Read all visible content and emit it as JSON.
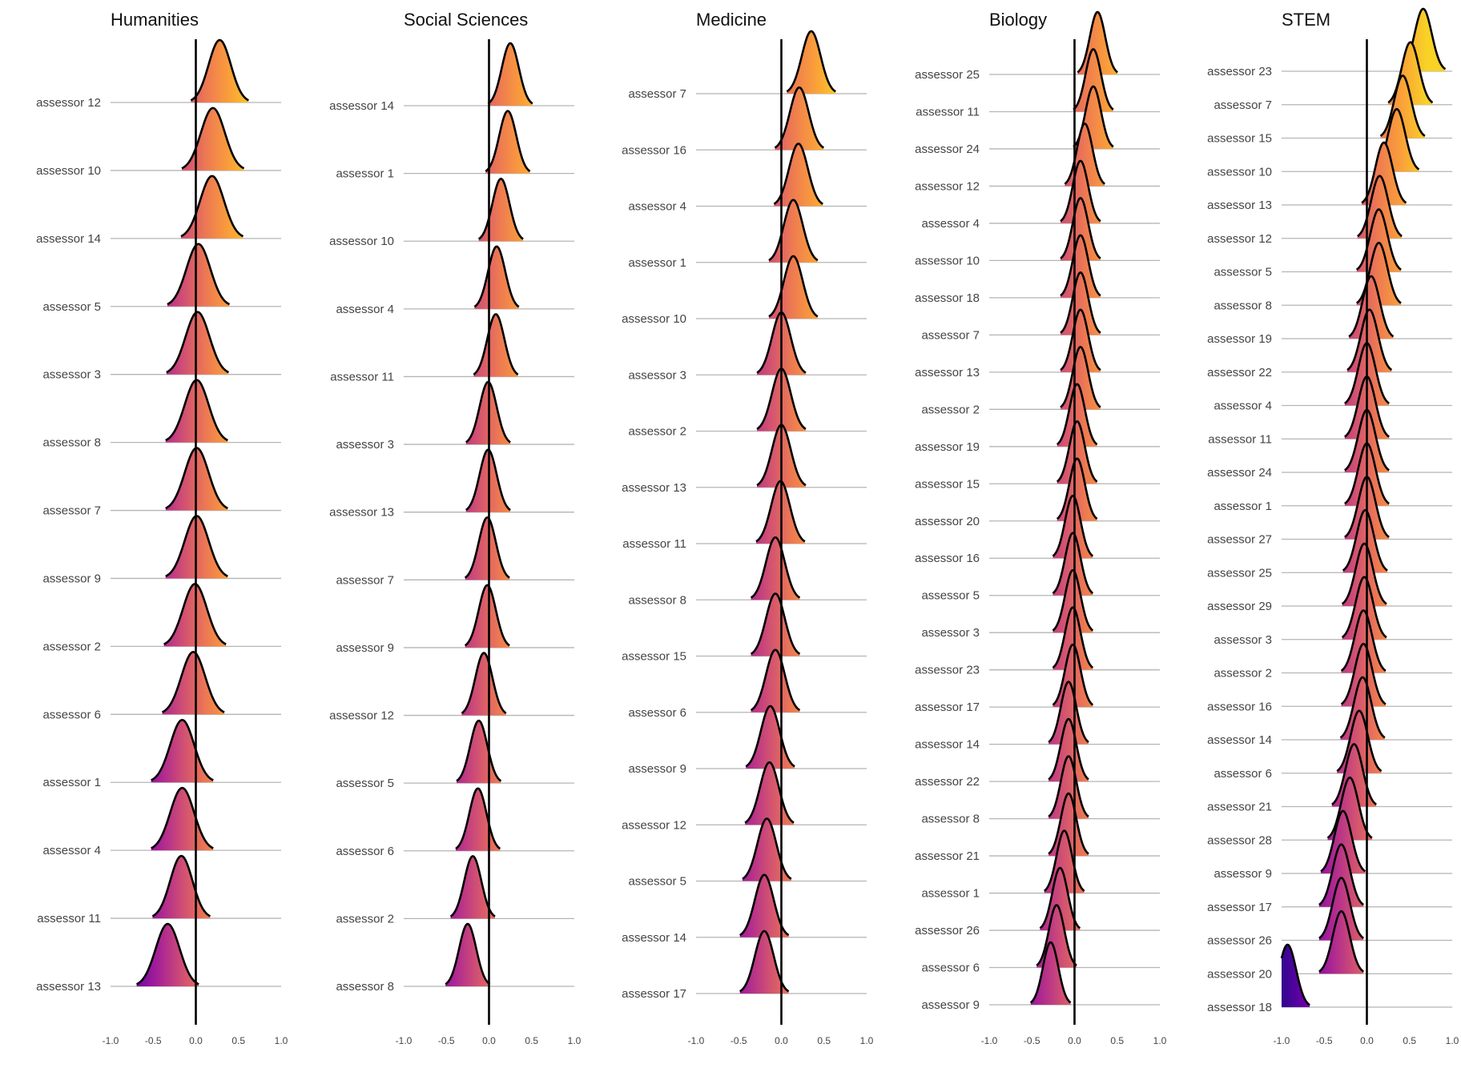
{
  "chart_data": {
    "type": "ridgeline",
    "xlim": [
      -1.0,
      1.0
    ],
    "x_ticks": [
      -1.0,
      -0.5,
      0.0,
      0.5,
      1.0
    ],
    "x_tick_labels": [
      "-1.0",
      "-0.5",
      "0.0",
      "0.5",
      "1.0"
    ],
    "reference_line_x": 0.0,
    "color_scale": {
      "low": -1.0,
      "high": 0.7,
      "stops": [
        "#30068f",
        "#6f00a8",
        "#a82296",
        "#d04f74",
        "#ee7b51",
        "#fba238",
        "#f8d225"
      ]
    },
    "panels": [
      {
        "title": "Humanities",
        "series": [
          {
            "name": "assessor 12",
            "mean": 0.28,
            "sd": 0.13
          },
          {
            "name": "assessor 10",
            "mean": 0.2,
            "sd": 0.14
          },
          {
            "name": "assessor 14",
            "mean": 0.19,
            "sd": 0.14
          },
          {
            "name": "assessor 5",
            "mean": 0.03,
            "sd": 0.14
          },
          {
            "name": "assessor 3",
            "mean": 0.02,
            "sd": 0.14
          },
          {
            "name": "assessor 8",
            "mean": 0.01,
            "sd": 0.14
          },
          {
            "name": "assessor 7",
            "mean": 0.01,
            "sd": 0.14
          },
          {
            "name": "assessor 9",
            "mean": 0.01,
            "sd": 0.14
          },
          {
            "name": "assessor 2",
            "mean": -0.01,
            "sd": 0.14
          },
          {
            "name": "assessor 6",
            "mean": -0.03,
            "sd": 0.14
          },
          {
            "name": "assessor 1",
            "mean": -0.16,
            "sd": 0.14
          },
          {
            "name": "assessor 4",
            "mean": -0.16,
            "sd": 0.14
          },
          {
            "name": "assessor 11",
            "mean": -0.17,
            "sd": 0.13
          },
          {
            "name": "assessor 13",
            "mean": -0.33,
            "sd": 0.14
          }
        ]
      },
      {
        "title": "Social Sciences",
        "series": [
          {
            "name": "assessor 14",
            "mean": 0.25,
            "sd": 0.1
          },
          {
            "name": "assessor 1",
            "mean": 0.22,
            "sd": 0.1
          },
          {
            "name": "assessor 10",
            "mean": 0.14,
            "sd": 0.1
          },
          {
            "name": "assessor 4",
            "mean": 0.09,
            "sd": 0.1
          },
          {
            "name": "assessor 11",
            "mean": 0.08,
            "sd": 0.1
          },
          {
            "name": "assessor 3",
            "mean": -0.01,
            "sd": 0.1
          },
          {
            "name": "assessor 13",
            "mean": -0.01,
            "sd": 0.1
          },
          {
            "name": "assessor 7",
            "mean": -0.02,
            "sd": 0.1
          },
          {
            "name": "assessor 9",
            "mean": -0.02,
            "sd": 0.1
          },
          {
            "name": "assessor 12",
            "mean": -0.06,
            "sd": 0.1
          },
          {
            "name": "assessor 5",
            "mean": -0.12,
            "sd": 0.1
          },
          {
            "name": "assessor 6",
            "mean": -0.13,
            "sd": 0.1
          },
          {
            "name": "assessor 2",
            "mean": -0.19,
            "sd": 0.1
          },
          {
            "name": "assessor 8",
            "mean": -0.25,
            "sd": 0.1
          }
        ]
      },
      {
        "title": "Medicine",
        "series": [
          {
            "name": "assessor 7",
            "mean": 0.35,
            "sd": 0.11
          },
          {
            "name": "assessor 16",
            "mean": 0.21,
            "sd": 0.11
          },
          {
            "name": "assessor 4",
            "mean": 0.2,
            "sd": 0.11
          },
          {
            "name": "assessor 1",
            "mean": 0.14,
            "sd": 0.11
          },
          {
            "name": "assessor 10",
            "mean": 0.14,
            "sd": 0.11
          },
          {
            "name": "assessor 3",
            "mean": 0.0,
            "sd": 0.11
          },
          {
            "name": "assessor 2",
            "mean": 0.0,
            "sd": 0.11
          },
          {
            "name": "assessor 13",
            "mean": 0.0,
            "sd": 0.11
          },
          {
            "name": "assessor 11",
            "mean": -0.01,
            "sd": 0.11
          },
          {
            "name": "assessor 8",
            "mean": -0.07,
            "sd": 0.11
          },
          {
            "name": "assessor 15",
            "mean": -0.07,
            "sd": 0.11
          },
          {
            "name": "assessor 6",
            "mean": -0.07,
            "sd": 0.11
          },
          {
            "name": "assessor 9",
            "mean": -0.13,
            "sd": 0.11
          },
          {
            "name": "assessor 12",
            "mean": -0.14,
            "sd": 0.11
          },
          {
            "name": "assessor 5",
            "mean": -0.17,
            "sd": 0.11
          },
          {
            "name": "assessor 14",
            "mean": -0.2,
            "sd": 0.11
          },
          {
            "name": "assessor 17",
            "mean": -0.2,
            "sd": 0.11
          }
        ]
      },
      {
        "title": "Biology",
        "series": [
          {
            "name": "assessor 25",
            "mean": 0.27,
            "sd": 0.09
          },
          {
            "name": "assessor 11",
            "mean": 0.22,
            "sd": 0.09
          },
          {
            "name": "assessor 24",
            "mean": 0.22,
            "sd": 0.09
          },
          {
            "name": "assessor 12",
            "mean": 0.12,
            "sd": 0.09
          },
          {
            "name": "assessor 4",
            "mean": 0.07,
            "sd": 0.09
          },
          {
            "name": "assessor 10",
            "mean": 0.07,
            "sd": 0.09
          },
          {
            "name": "assessor 18",
            "mean": 0.07,
            "sd": 0.09
          },
          {
            "name": "assessor 7",
            "mean": 0.07,
            "sd": 0.09
          },
          {
            "name": "assessor 13",
            "mean": 0.07,
            "sd": 0.09
          },
          {
            "name": "assessor 2",
            "mean": 0.07,
            "sd": 0.09
          },
          {
            "name": "assessor 19",
            "mean": 0.03,
            "sd": 0.09
          },
          {
            "name": "assessor 15",
            "mean": 0.03,
            "sd": 0.09
          },
          {
            "name": "assessor 20",
            "mean": 0.03,
            "sd": 0.09
          },
          {
            "name": "assessor 16",
            "mean": -0.02,
            "sd": 0.09
          },
          {
            "name": "assessor 5",
            "mean": -0.02,
            "sd": 0.09
          },
          {
            "name": "assessor 3",
            "mean": -0.02,
            "sd": 0.09
          },
          {
            "name": "assessor 23",
            "mean": -0.02,
            "sd": 0.09
          },
          {
            "name": "assessor 17",
            "mean": -0.02,
            "sd": 0.09
          },
          {
            "name": "assessor 14",
            "mean": -0.07,
            "sd": 0.09
          },
          {
            "name": "assessor 22",
            "mean": -0.07,
            "sd": 0.09
          },
          {
            "name": "assessor 8",
            "mean": -0.07,
            "sd": 0.09
          },
          {
            "name": "assessor 21",
            "mean": -0.07,
            "sd": 0.09
          },
          {
            "name": "assessor 1",
            "mean": -0.12,
            "sd": 0.09
          },
          {
            "name": "assessor 26",
            "mean": -0.17,
            "sd": 0.09
          },
          {
            "name": "assessor 6",
            "mean": -0.21,
            "sd": 0.09
          },
          {
            "name": "assessor 9",
            "mean": -0.28,
            "sd": 0.09
          }
        ]
      },
      {
        "title": "STEM",
        "series": [
          {
            "name": "assessor 23",
            "mean": 0.66,
            "sd": 0.1
          },
          {
            "name": "assessor 7",
            "mean": 0.51,
            "sd": 0.1
          },
          {
            "name": "assessor 15",
            "mean": 0.42,
            "sd": 0.1
          },
          {
            "name": "assessor 10",
            "mean": 0.35,
            "sd": 0.1
          },
          {
            "name": "assessor 13",
            "mean": 0.2,
            "sd": 0.1
          },
          {
            "name": "assessor 12",
            "mean": 0.15,
            "sd": 0.1
          },
          {
            "name": "assessor 5",
            "mean": 0.14,
            "sd": 0.1
          },
          {
            "name": "assessor 8",
            "mean": 0.14,
            "sd": 0.1
          },
          {
            "name": "assessor 19",
            "mean": 0.05,
            "sd": 0.1
          },
          {
            "name": "assessor 22",
            "mean": 0.03,
            "sd": 0.1
          },
          {
            "name": "assessor 4",
            "mean": 0.0,
            "sd": 0.1
          },
          {
            "name": "assessor 11",
            "mean": 0.0,
            "sd": 0.1
          },
          {
            "name": "assessor 24",
            "mean": 0.0,
            "sd": 0.1
          },
          {
            "name": "assessor 1",
            "mean": 0.0,
            "sd": 0.1
          },
          {
            "name": "assessor 27",
            "mean": 0.0,
            "sd": 0.1
          },
          {
            "name": "assessor 25",
            "mean": -0.02,
            "sd": 0.1
          },
          {
            "name": "assessor 29",
            "mean": -0.03,
            "sd": 0.1
          },
          {
            "name": "assessor 3",
            "mean": -0.03,
            "sd": 0.1
          },
          {
            "name": "assessor 2",
            "mean": -0.04,
            "sd": 0.1
          },
          {
            "name": "assessor 16",
            "mean": -0.04,
            "sd": 0.1
          },
          {
            "name": "assessor 14",
            "mean": -0.05,
            "sd": 0.1
          },
          {
            "name": "assessor 6",
            "mean": -0.09,
            "sd": 0.1
          },
          {
            "name": "assessor 21",
            "mean": -0.15,
            "sd": 0.1
          },
          {
            "name": "assessor 28",
            "mean": -0.2,
            "sd": 0.1
          },
          {
            "name": "assessor 9",
            "mean": -0.28,
            "sd": 0.1
          },
          {
            "name": "assessor 17",
            "mean": -0.3,
            "sd": 0.1
          },
          {
            "name": "assessor 26",
            "mean": -0.3,
            "sd": 0.1
          },
          {
            "name": "assessor 20",
            "mean": -0.3,
            "sd": 0.1
          },
          {
            "name": "assessor 18",
            "mean": -0.93,
            "sd": 0.1
          }
        ]
      }
    ]
  }
}
